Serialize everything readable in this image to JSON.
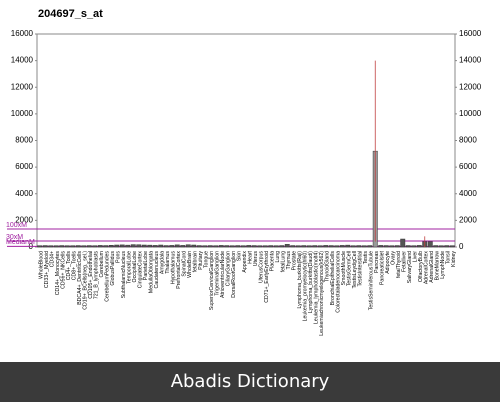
{
  "chart_data": {
    "type": "bar",
    "title": "204697_s_at",
    "categories": [
      "WholeBlood",
      "CD33+_Myeloid",
      "CD34+",
      "CD14+_Monocytes",
      "CD56+_NKCells",
      "CD4+_Tcells",
      "CD8+_Tcells",
      "BDCA4+_DentriticCells",
      "CD19+_BCells(neg._sel.)",
      "CD105+_Endothelial",
      "721_B_lymphoblasts",
      "Cerebellum",
      "CerebellumPeduncles",
      "GlobusPallidus",
      "Pons",
      "SubthalamicNucleus",
      "TemporalLobe",
      "OccipitalLobe",
      "CingulateCortex",
      "ParietalLobe",
      "MedullaOblongata",
      "Caudatenucleus",
      "Amygdala",
      "Thalamus",
      "Hypothalamus",
      "PrefrontalCortex",
      "SpinalCord",
      "WholeBrain",
      "fetalbrain",
      "Pituitary",
      "Tongue",
      "SuperiorCervicalGanglion",
      "TrigeminalGanglion",
      "AtrioventricularNode",
      "CiliaryGanglion",
      "DorsalRootGanglion",
      "Skin",
      "Appendix",
      "Heart",
      "Uterus",
      "UterusCorpus",
      "CD71+_EarlyErythroid",
      "Placenta",
      "Lung",
      "fetalLung",
      "Thymus",
      "Prostate",
      "Lymphoma_burkitts(Raji)",
      "Leukemia_promyelocytic(hl60)",
      "Lymphoma_burkitts(Daudi)",
      "Leukemia_lymphoblastic(molt4)",
      "Leukemiachronicmyelogenous(k562)",
      "ThyroidGland",
      "BronchialEpithelialCells",
      "Colorectaladenocarcinoma",
      "SmoothMuscle",
      "TestisGermCell",
      "TestisLeydigCell",
      "TestisInterstitial",
      "Testis",
      "TestisSeminiferousTubule",
      "Pancreas",
      "PancreaticIslet",
      "Adipocyte",
      "Ovary",
      "fetalThyroid",
      "Fetalliver",
      "SalivaryGland",
      "Liver",
      "OlfactoryBulb",
      "AdrenalCortex",
      "AdrenalGland",
      "BoneMarrow",
      "LymphNode",
      "Tonsil",
      "Kidney"
    ],
    "values": [
      100,
      110,
      100,
      100,
      110,
      100,
      100,
      110,
      100,
      110,
      100,
      120,
      110,
      130,
      150,
      160,
      140,
      180,
      170,
      150,
      140,
      120,
      150,
      110,
      120,
      160,
      120,
      170,
      150,
      110,
      100,
      110,
      100,
      120,
      110,
      100,
      110,
      100,
      120,
      110,
      100,
      100,
      110,
      100,
      110,
      200,
      110,
      100,
      110,
      100,
      110,
      100,
      120,
      110,
      100,
      120,
      140,
      100,
      110,
      100,
      110,
      7200,
      120,
      110,
      100,
      110,
      600,
      110,
      100,
      120,
      400,
      400,
      110,
      100,
      110,
      100
    ],
    "errors": [
      null,
      null,
      null,
      null,
      null,
      null,
      null,
      null,
      null,
      null,
      null,
      null,
      null,
      null,
      null,
      null,
      null,
      null,
      null,
      null,
      null,
      null,
      null,
      null,
      null,
      null,
      null,
      null,
      null,
      null,
      null,
      null,
      null,
      null,
      null,
      null,
      null,
      null,
      null,
      null,
      null,
      null,
      null,
      null,
      null,
      null,
      null,
      null,
      null,
      null,
      null,
      null,
      null,
      null,
      null,
      null,
      null,
      null,
      null,
      null,
      null,
      6800,
      null,
      null,
      null,
      null,
      null,
      null,
      null,
      null,
      400,
      null,
      null,
      null,
      null,
      null
    ],
    "color": "#555555",
    "highlight_color": "#999999",
    "error_color": "#c04040",
    "ylim": [
      0,
      16000
    ],
    "yticks": [
      0,
      2000,
      4000,
      6000,
      8000,
      10000,
      12000,
      14000,
      16000
    ],
    "reference_lines": [
      {
        "label": "100xM",
        "value": 1350,
        "color": "#a020a0"
      },
      {
        "label": "30xM",
        "value": 450,
        "color": "#a020a0"
      },
      {
        "label": "MedianM",
        "value": 45,
        "color": "#a020a0"
      }
    ]
  },
  "footer": "Abadis Dictionary"
}
